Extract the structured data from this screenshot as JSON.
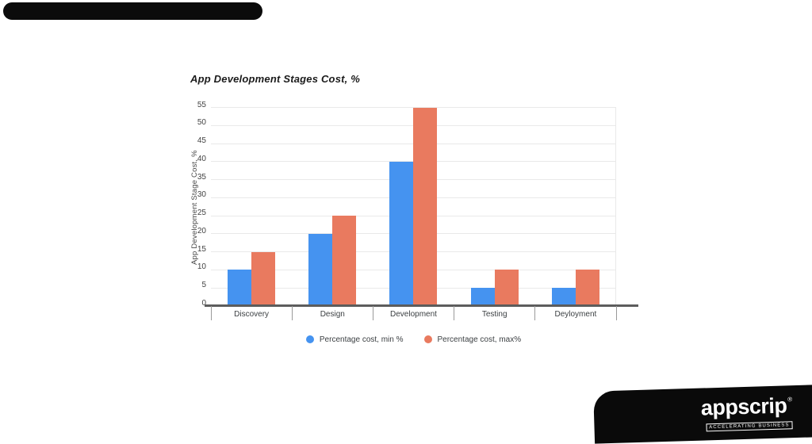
{
  "brand": {
    "logo_text": "appscrip",
    "registered_mark": "®",
    "tagline": "ACCELERATING BUSINESS"
  },
  "chart_data": {
    "type": "bar",
    "title": "App Development Stages Cost, %",
    "xlabel": "",
    "ylabel": "App Development Stage Cost, %",
    "categories": [
      "Discovery",
      "Design",
      "Development",
      "Testing",
      "Deyloyment"
    ],
    "series": [
      {
        "name": "Percentage cost, min %",
        "color": "#4593F0",
        "values": [
          10,
          20,
          40,
          5,
          5
        ]
      },
      {
        "name": "Percentage cost, max%",
        "color": "#E97A5F",
        "values": [
          15,
          25,
          55,
          10,
          10
        ]
      }
    ],
    "ylim": [
      0,
      55
    ],
    "ytick_step": 5,
    "grid": true,
    "legend_position": "bottom"
  }
}
